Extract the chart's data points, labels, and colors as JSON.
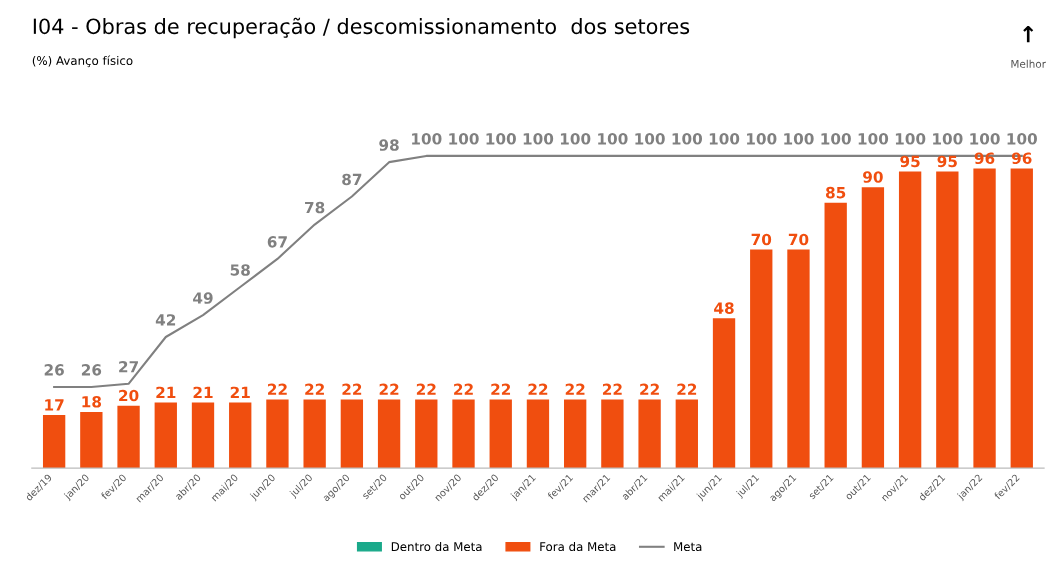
{
  "chart_data": {
    "type": "bar",
    "title": "I04 - Obras de recuperação / descomissionamento  dos setores",
    "subtitle": "(%) Avanço físico",
    "annotations": [
      "↑",
      "Melhor"
    ],
    "categories": [
      "dez/19",
      "jan/20",
      "fev/20",
      "mar/20",
      "abr/20",
      "mai/20",
      "jun/20",
      "jul/20",
      "ago/20",
      "set/20",
      "out/20",
      "nov/20",
      "dez/20",
      "jan/21",
      "fev/21",
      "mar/21",
      "abr/21",
      "mai/21",
      "jun/21",
      "jul/21",
      "ago/21",
      "set/21",
      "out/21",
      "nov/21",
      "dez/21",
      "jan/22",
      "fev/22"
    ],
    "series": [
      {
        "name": "Dentro da Meta",
        "color": "#1aa98a",
        "values": [
          null,
          null,
          null,
          null,
          null,
          null,
          null,
          null,
          null,
          null,
          null,
          null,
          null,
          null,
          null,
          null,
          null,
          null,
          null,
          null,
          null,
          null,
          null,
          null,
          null,
          null,
          null
        ]
      },
      {
        "name": "Fora da Meta",
        "color": "#f04e0f",
        "values": [
          17,
          18,
          20,
          21,
          21,
          21,
          22,
          22,
          22,
          22,
          22,
          22,
          22,
          22,
          22,
          22,
          22,
          22,
          48,
          70,
          70,
          85,
          90,
          95,
          95,
          96,
          96
        ]
      },
      {
        "name": "Meta",
        "type": "line",
        "color": "#808080",
        "values": [
          26,
          26,
          27,
          42,
          49,
          58,
          67,
          78,
          87,
          98,
          100,
          100,
          100,
          100,
          100,
          100,
          100,
          100,
          100,
          100,
          100,
          100,
          100,
          100,
          100,
          100,
          100
        ]
      }
    ],
    "data_labels": true,
    "legend": "bottom",
    "grid": false,
    "marker": "none",
    "line_style": "solid"
  }
}
